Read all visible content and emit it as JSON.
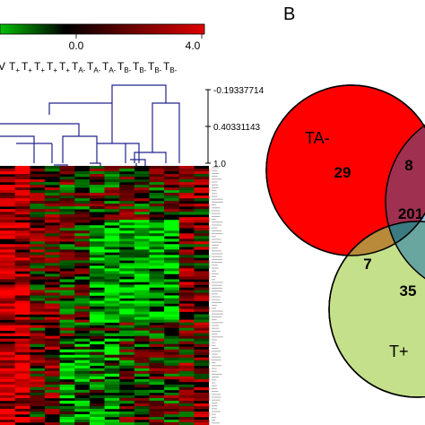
{
  "panel_b_label": "B",
  "color_scale": {
    "min_label": "0.0",
    "max_label": "4.0",
    "colors": {
      "low": "#00c800",
      "mid": "#000000",
      "high": "#d40000"
    }
  },
  "column_labels": [
    "V",
    "T+",
    "T+",
    "T+",
    "T+",
    "T+",
    "TA-",
    "TA-",
    "TA-",
    "TB-",
    "TB-",
    "TB-",
    "TB-"
  ],
  "dendrogram_scale": [
    "-0.19337714",
    "0.40331143",
    "1.0"
  ],
  "venn": {
    "sets": [
      {
        "label": "TA-",
        "color": "#ff0000"
      },
      {
        "label": "",
        "color": "#8fbfe0"
      },
      {
        "label": "T+",
        "color": "#c5e08a"
      }
    ],
    "regions": [
      {
        "name": "TA- only",
        "value": "29"
      },
      {
        "name": "TA- and TB-",
        "value": "8"
      },
      {
        "name": "all three",
        "value": "201"
      },
      {
        "name": "TA- and T+",
        "value": "7"
      },
      {
        "name": "T+ only",
        "value": "35"
      }
    ]
  }
}
